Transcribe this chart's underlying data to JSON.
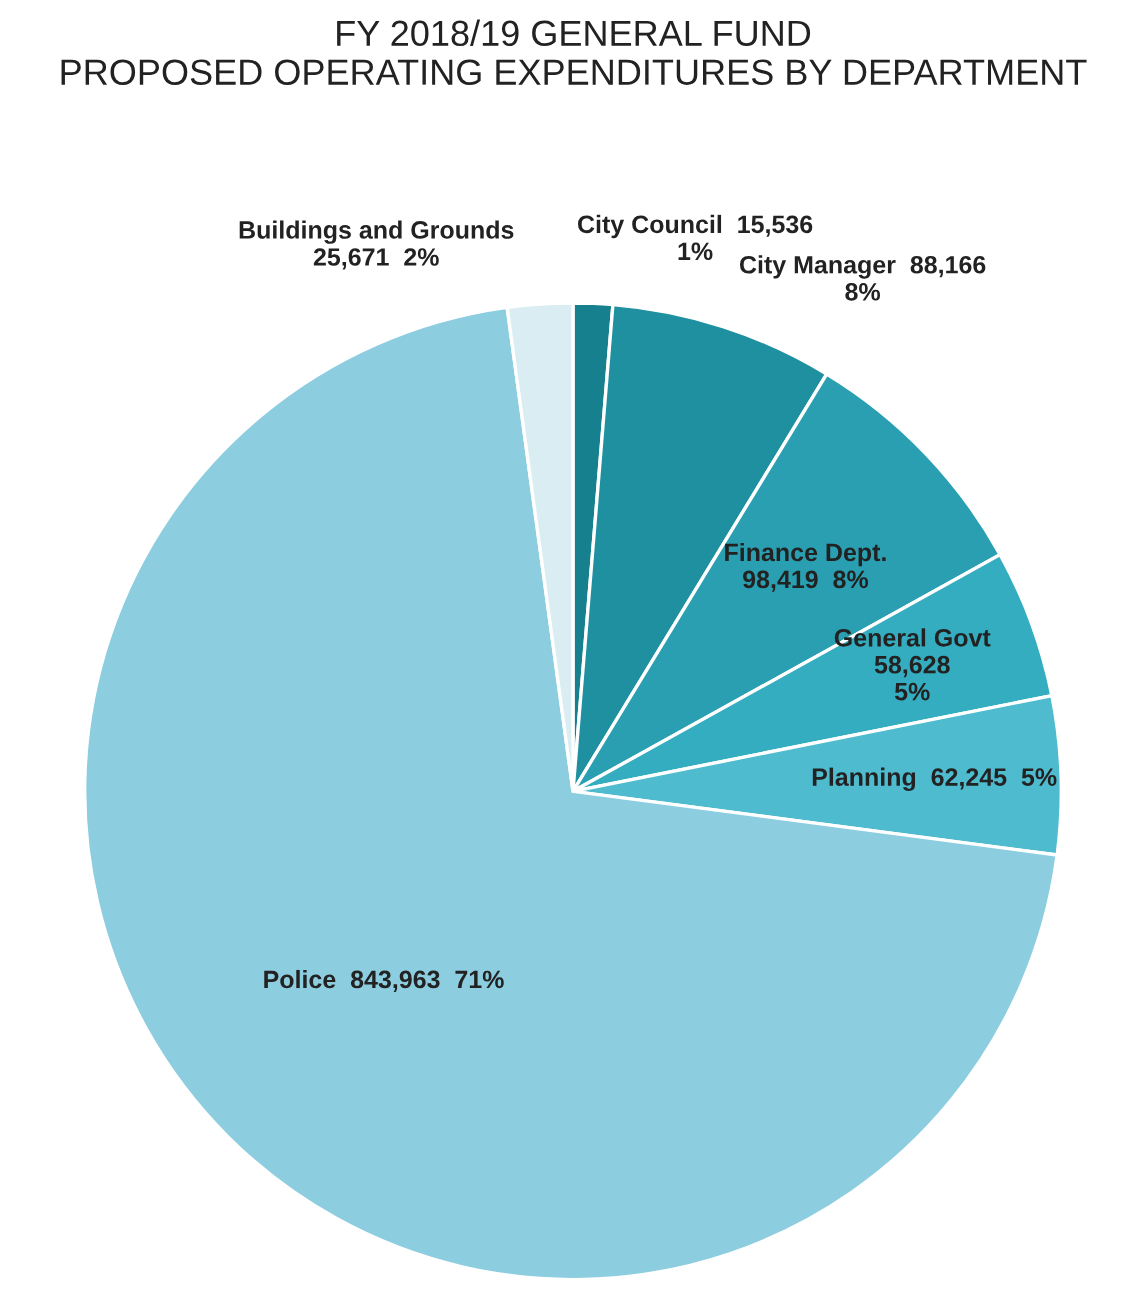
{
  "chart_data": {
    "type": "pie",
    "title": "FY 2018/19 GENERAL FUND\nPROPOSED OPERATING EXPENDITURES BY DEPARTMENT",
    "categories": [
      "City Council",
      "City Manager",
      "Finance Dept.",
      "General Govt",
      "Planning",
      "Police",
      "Buildings and Grounds"
    ],
    "values": [
      15536,
      88166,
      98419,
      58628,
      62245,
      843963,
      25671
    ],
    "value_labels": [
      "15,536\n1%",
      "88,166\n8%",
      "98,419  8%",
      "58,628\n5%",
      "62,245  5%",
      "843,963  71%",
      "25,671  2%"
    ],
    "colors": [
      "#16808f",
      "#1f909f",
      "#2a9fb1",
      "#35adc0",
      "#4ebbcf",
      "#8ccde0",
      "#d9edf3"
    ]
  }
}
